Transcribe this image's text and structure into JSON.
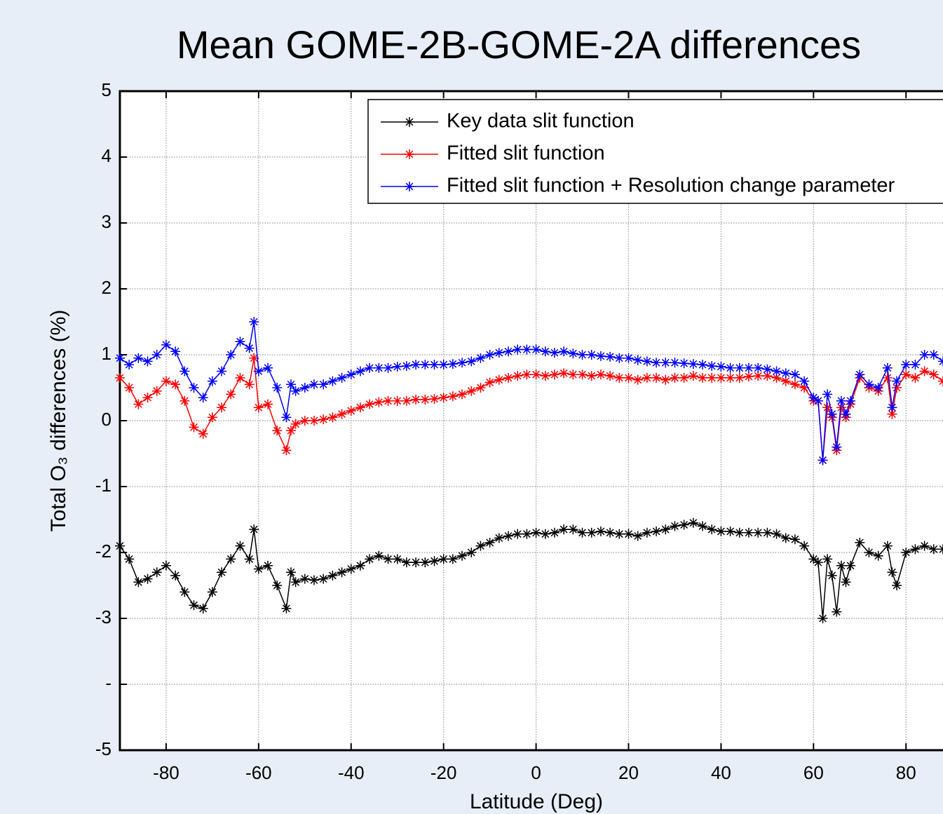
{
  "chart_data": {
    "type": "line",
    "title": "Mean GOME-2B-GOME-2A differences",
    "xlabel": "Latitude (Deg)",
    "ylabel": "Total O₃ differences (%)",
    "x": [
      -90,
      -88,
      -86,
      -84,
      -82,
      -80,
      -78,
      -76,
      -74,
      -72,
      -70,
      -68,
      -66,
      -64,
      -62,
      -61,
      -60,
      -58,
      -56,
      -54,
      -53,
      -52,
      -50,
      -48,
      -46,
      -44,
      -42,
      -40,
      -38,
      -36,
      -34,
      -32,
      -30,
      -28,
      -26,
      -24,
      -22,
      -20,
      -18,
      -16,
      -14,
      -12,
      -10,
      -8,
      -6,
      -4,
      -2,
      0,
      2,
      4,
      6,
      8,
      10,
      12,
      14,
      16,
      18,
      20,
      22,
      24,
      26,
      28,
      30,
      32,
      34,
      36,
      38,
      40,
      42,
      44,
      46,
      48,
      50,
      52,
      54,
      56,
      58,
      60,
      61,
      62,
      63,
      64,
      65,
      66,
      67,
      68,
      70,
      72,
      74,
      76,
      77,
      78,
      80,
      82,
      84,
      86,
      88
    ],
    "series": [
      {
        "name": "Key data slit function",
        "color": "#000000",
        "values": [
          -1.9,
          -2.1,
          -2.45,
          -2.4,
          -2.3,
          -2.2,
          -2.35,
          -2.6,
          -2.8,
          -2.85,
          -2.6,
          -2.3,
          -2.1,
          -1.9,
          -2.1,
          -1.65,
          -2.25,
          -2.2,
          -2.5,
          -2.85,
          -2.3,
          -2.45,
          -2.4,
          -2.42,
          -2.4,
          -2.35,
          -2.3,
          -2.25,
          -2.2,
          -2.1,
          -2.05,
          -2.1,
          -2.1,
          -2.15,
          -2.15,
          -2.15,
          -2.13,
          -2.1,
          -2.1,
          -2.05,
          -2.0,
          -1.9,
          -1.85,
          -1.78,
          -1.75,
          -1.72,
          -1.72,
          -1.7,
          -1.72,
          -1.7,
          -1.65,
          -1.65,
          -1.7,
          -1.7,
          -1.68,
          -1.7,
          -1.72,
          -1.72,
          -1.75,
          -1.7,
          -1.68,
          -1.65,
          -1.6,
          -1.58,
          -1.55,
          -1.6,
          -1.65,
          -1.68,
          -1.68,
          -1.7,
          -1.7,
          -1.7,
          -1.7,
          -1.72,
          -1.78,
          -1.8,
          -1.9,
          -2.1,
          -2.15,
          -3.0,
          -2.1,
          -2.35,
          -2.9,
          -2.2,
          -2.45,
          -2.2,
          -1.85,
          -2.0,
          -2.05,
          -1.9,
          -2.3,
          -2.5,
          -2.0,
          -1.95,
          -1.9,
          -1.95,
          -1.95
        ]
      },
      {
        "name": "Fitted slit function",
        "color": "#ff0000",
        "values": [
          0.65,
          0.5,
          0.25,
          0.35,
          0.45,
          0.6,
          0.55,
          0.3,
          -0.1,
          -0.2,
          0.05,
          0.2,
          0.4,
          0.65,
          0.55,
          0.95,
          0.2,
          0.25,
          -0.15,
          -0.45,
          -0.15,
          -0.05,
          0.0,
          0.0,
          0.02,
          0.05,
          0.1,
          0.15,
          0.2,
          0.25,
          0.28,
          0.3,
          0.3,
          0.3,
          0.32,
          0.32,
          0.33,
          0.35,
          0.37,
          0.4,
          0.45,
          0.5,
          0.58,
          0.62,
          0.65,
          0.68,
          0.7,
          0.7,
          0.68,
          0.7,
          0.72,
          0.7,
          0.7,
          0.68,
          0.7,
          0.68,
          0.65,
          0.65,
          0.62,
          0.65,
          0.65,
          0.62,
          0.65,
          0.65,
          0.68,
          0.65,
          0.65,
          0.65,
          0.65,
          0.65,
          0.67,
          0.68,
          0.68,
          0.65,
          0.6,
          0.55,
          0.5,
          0.3,
          0.3,
          -0.6,
          0.2,
          0.05,
          -0.45,
          0.2,
          0.05,
          0.25,
          0.65,
          0.5,
          0.45,
          0.65,
          0.1,
          0.5,
          0.7,
          0.65,
          0.75,
          0.7,
          0.6
        ]
      },
      {
        "name": "Fitted slit function + Resolution change parameter",
        "color": "#0000ff",
        "values": [
          0.95,
          0.85,
          0.95,
          0.9,
          1.0,
          1.15,
          1.05,
          0.75,
          0.5,
          0.35,
          0.6,
          0.75,
          1.0,
          1.2,
          1.1,
          1.5,
          0.75,
          0.8,
          0.5,
          0.05,
          0.55,
          0.45,
          0.5,
          0.55,
          0.55,
          0.6,
          0.65,
          0.7,
          0.75,
          0.8,
          0.8,
          0.8,
          0.82,
          0.83,
          0.85,
          0.85,
          0.85,
          0.85,
          0.86,
          0.88,
          0.9,
          0.95,
          1.0,
          1.03,
          1.05,
          1.08,
          1.08,
          1.08,
          1.05,
          1.03,
          1.05,
          1.02,
          1.0,
          1.0,
          0.98,
          0.97,
          0.95,
          0.95,
          0.92,
          0.9,
          0.88,
          0.88,
          0.88,
          0.87,
          0.86,
          0.85,
          0.83,
          0.82,
          0.8,
          0.8,
          0.8,
          0.8,
          0.78,
          0.75,
          0.72,
          0.7,
          0.6,
          0.35,
          0.3,
          -0.6,
          0.4,
          0.1,
          -0.4,
          0.3,
          0.1,
          0.3,
          0.7,
          0.55,
          0.5,
          0.8,
          0.2,
          0.6,
          0.85,
          0.85,
          1.0,
          1.0,
          0.9
        ]
      }
    ],
    "xlim": [
      -90,
      88
    ],
    "xticks": [
      -80,
      -60,
      -40,
      -20,
      0,
      20,
      40,
      60,
      80
    ],
    "ylim": [
      -5,
      5
    ],
    "yticks": [
      5,
      4,
      3,
      2,
      1,
      0,
      -1,
      -2,
      -3,
      {
        "value": -4,
        "label": "-"
      },
      -5
    ],
    "grid": true,
    "legend": "upper right"
  }
}
